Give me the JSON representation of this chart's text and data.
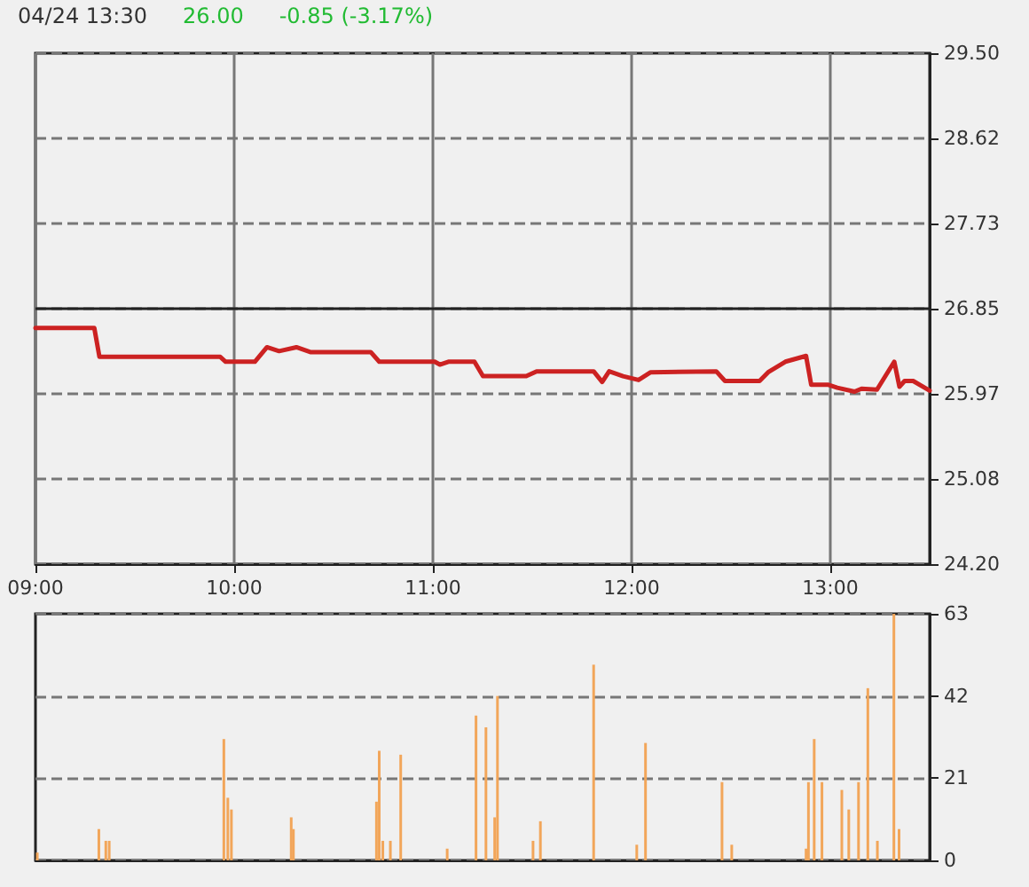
{
  "chart_data": [
    {
      "type": "line",
      "title": "04/24 13:30",
      "annotations": [
        "26.00",
        "-0.85 (-3.17%)"
      ],
      "series": [
        {
          "color": "#cc2222",
          "x": [
            9.0,
            9.296,
            9.322,
            9.93,
            9.957,
            10.104,
            10.165,
            10.226,
            10.313,
            10.383,
            10.687,
            10.73,
            11.009,
            11.035,
            11.078,
            11.209,
            11.252,
            11.47,
            11.522,
            11.557,
            11.583,
            11.809,
            11.852,
            11.887,
            11.957,
            12.035,
            12.096,
            12.426,
            12.47,
            12.644,
            12.687,
            12.774,
            12.878,
            12.904,
            12.991,
            13.035,
            13.122,
            13.157,
            13.235,
            13.322,
            13.348,
            13.374,
            13.417,
            13.5
          ],
          "values": [
            26.65,
            26.65,
            26.35,
            26.35,
            26.3,
            26.3,
            26.45,
            26.41,
            26.45,
            26.4,
            26.4,
            26.3,
            26.3,
            26.27,
            26.3,
            26.3,
            26.15,
            26.15,
            26.2,
            26.2,
            26.2,
            26.2,
            26.09,
            26.2,
            26.15,
            26.11,
            26.19,
            26.2,
            26.1,
            26.1,
            26.19,
            26.3,
            26.36,
            26.06,
            26.06,
            26.03,
            25.99,
            26.02,
            26.01,
            26.3,
            26.04,
            26.1,
            26.1,
            26.0
          ]
        }
      ],
      "xlim": [
        9,
        13.5
      ],
      "xticks": [
        {
          "value": 9,
          "label": "09:00"
        },
        {
          "value": 10,
          "label": "10:00"
        },
        {
          "value": 11,
          "label": "11:00"
        },
        {
          "value": 12,
          "label": "12:00"
        },
        {
          "value": 13,
          "label": "13:00"
        }
      ],
      "ylim": [
        24.2,
        29.5
      ],
      "yticks": [
        {
          "value": 24.2,
          "label": "24.20"
        },
        25.08,
        25.97,
        26.85,
        27.73,
        28.62,
        {
          "value": 29.5,
          "label": "29.50"
        }
      ],
      "ref_lines": [
        {
          "axis": "y",
          "value": 26.85,
          "color": "#222222",
          "line_style": "solid"
        }
      ],
      "grid": true,
      "marker": "none",
      "line_style": "solid"
    },
    {
      "type": "bar",
      "series": [
        {
          "color": "#f2a65a",
          "x": [
            9.009,
            9.319,
            9.354,
            9.371,
            9.948,
            9.968,
            9.986,
            10.287,
            10.298,
            10.716,
            10.73,
            10.748,
            10.786,
            10.838,
            11.072,
            11.217,
            11.267,
            11.311,
            11.325,
            11.504,
            11.541,
            11.809,
            12.026,
            12.07,
            12.455,
            12.504,
            12.878,
            12.89,
            12.919,
            12.958,
            13.058,
            13.093,
            13.142,
            13.189,
            13.237,
            13.32,
            13.346
          ],
          "values": [
            2,
            8,
            5,
            5,
            31,
            16,
            13,
            11,
            8,
            15,
            28,
            5,
            5,
            27,
            3,
            37,
            34,
            11,
            42,
            5,
            10,
            50,
            4,
            30,
            20,
            4,
            3,
            20,
            31,
            20,
            18,
            13,
            20,
            44,
            5,
            63,
            8
          ]
        }
      ],
      "xlim": [
        9,
        13.5
      ],
      "ylim": [
        0,
        63
      ],
      "yticks": [
        0,
        21,
        42,
        63
      ],
      "grid": "y",
      "tick_labels": "y"
    }
  ]
}
